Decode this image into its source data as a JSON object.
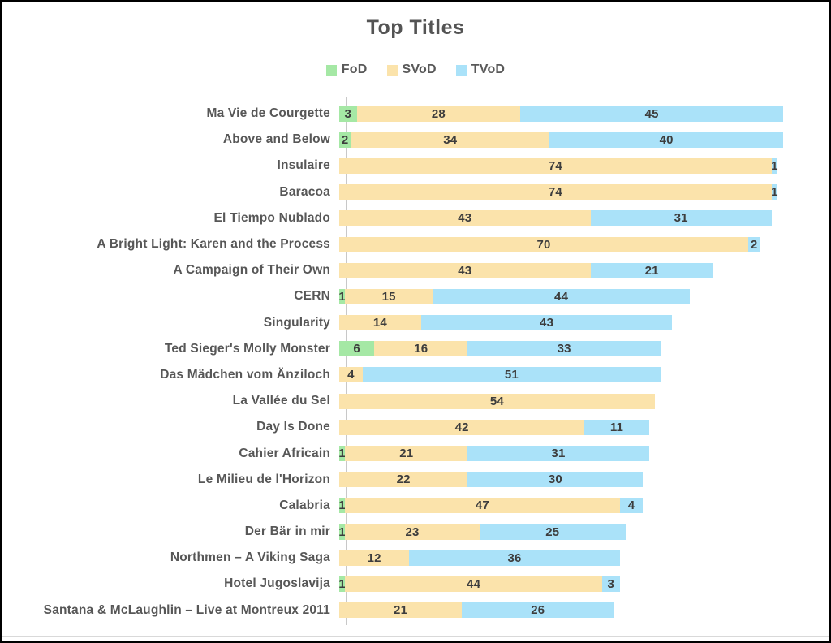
{
  "frame": {
    "background": "#ffffff",
    "border_color": "#000000"
  },
  "chart_data": {
    "type": "bar",
    "orientation": "horizontal",
    "stacked": true,
    "title": "Top Titles",
    "title_color": "#545454",
    "legend_position": "top-center",
    "grid": false,
    "x_axis_tick_labels_shown": false,
    "value_labels_shown": true,
    "value_label_color": "#3d3d3d",
    "category_label_color": "#575757",
    "axis_line_color": "#c8c8c8",
    "x_max_displayed": 76,
    "categories": [
      "Ma Vie de Courgette",
      "Above and Below",
      "Insulaire",
      "Baracoa",
      "El Tiempo Nublado",
      "A Bright Light: Karen and the Process",
      "A Campaign of Their Own",
      "CERN",
      "Singularity",
      "Ted Sieger's Molly Monster",
      "Das Mädchen vom Änziloch",
      "La Vallée du Sel",
      "Day Is Done",
      "Cahier Africain",
      "Le Milieu de l'Horizon",
      "Calabria",
      "Der Bär in mir",
      "Northmen – A Viking Saga",
      "Hotel Jugoslavija",
      "Santana & McLaughlin – Live at Montreux 2011"
    ],
    "series": [
      {
        "name": "FoD",
        "color": "#A5E8A5",
        "values": [
          3,
          2,
          0,
          0,
          0,
          0,
          0,
          1,
          0,
          6,
          0,
          0,
          0,
          1,
          0,
          1,
          1,
          0,
          1,
          0
        ]
      },
      {
        "name": "SVoD",
        "color": "#FBE3AB",
        "values": [
          28,
          34,
          74,
          74,
          43,
          70,
          43,
          15,
          14,
          16,
          4,
          54,
          42,
          21,
          22,
          47,
          23,
          12,
          44,
          21
        ]
      },
      {
        "name": "TVoD",
        "color": "#AAE2F9",
        "values": [
          45,
          40,
          1,
          1,
          31,
          2,
          21,
          44,
          43,
          33,
          51,
          0,
          11,
          31,
          30,
          4,
          25,
          36,
          3,
          26
        ]
      }
    ]
  }
}
